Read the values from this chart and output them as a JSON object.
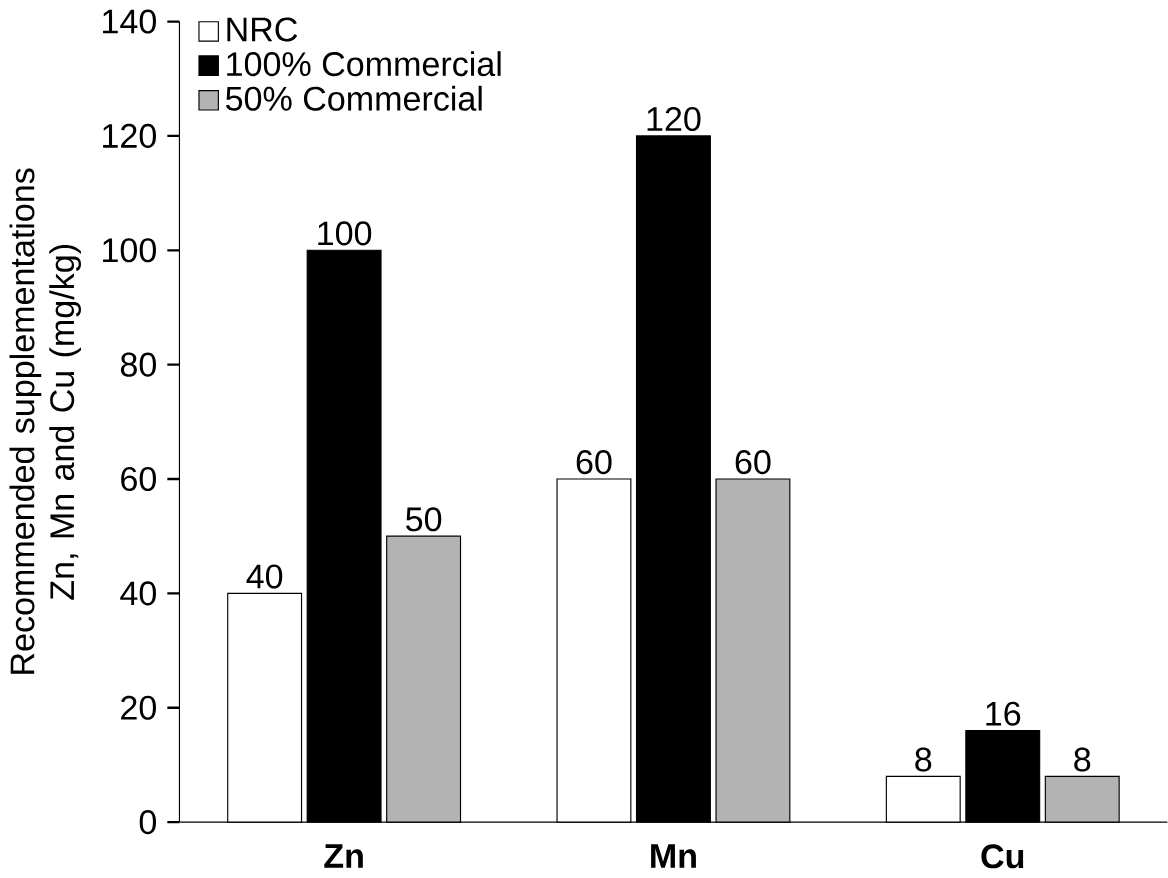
{
  "chart_data": {
    "type": "bar",
    "ylabel": "Recommended supplementations Zn, Mn and Cu (mg/kg)",
    "categories": [
      "Zn",
      "Mn",
      "Cu"
    ],
    "series": [
      {
        "name": "NRC",
        "color": "#ffffff",
        "values": [
          40,
          60,
          8
        ]
      },
      {
        "name": "100% Commercial",
        "color": "#000000",
        "values": [
          100,
          120,
          16
        ]
      },
      {
        "name": "50% Commercial",
        "color": "#b3b3b3",
        "values": [
          50,
          60,
          8
        ]
      }
    ],
    "ylim": [
      0,
      140
    ],
    "yticks": [
      0,
      20,
      40,
      60,
      80,
      100,
      120,
      140
    ],
    "data_labels": true,
    "legend": "top left",
    "grid": false
  }
}
